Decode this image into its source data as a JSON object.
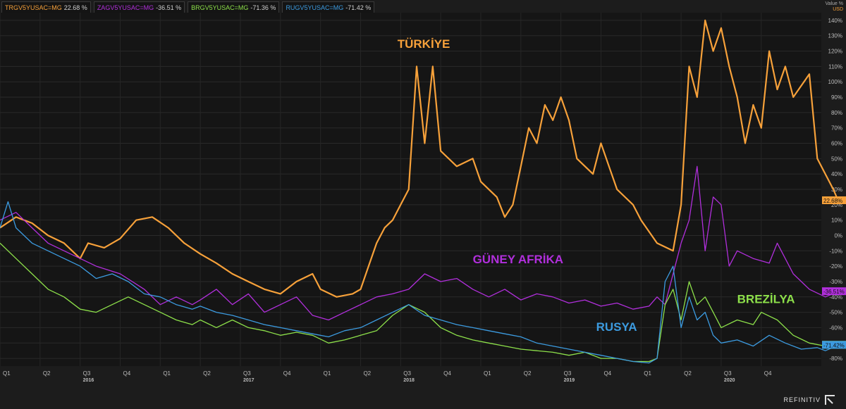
{
  "legend": [
    {
      "code": "TRGV5YUSAC=MG",
      "value": "22.68 %",
      "color": "#f7a13a"
    },
    {
      "code": "ZAGV5YUSAC=MG",
      "value": "-36.51 %",
      "color": "#b12fdc"
    },
    {
      "code": "BRGV5YUSAC=MG",
      "value": "-71.36 %",
      "color": "#8de04a"
    },
    {
      "code": "RUGV5YUSAC=MG",
      "value": "-71.42 %",
      "color": "#3c9be0"
    }
  ],
  "axis_unit": {
    "label": "Value %",
    "currency": "USD"
  },
  "brand": "REFINITIV",
  "chart_data": {
    "type": "line",
    "ylim": [
      -85,
      145
    ],
    "x_range": [
      2015.75,
      2020.875
    ],
    "y_ticks": [
      "140%",
      "130%",
      "120%",
      "110%",
      "100%",
      "90%",
      "80%",
      "70%",
      "60%",
      "50%",
      "40%",
      "30%",
      "20%",
      "10%",
      "0%",
      "-10%",
      "-20%",
      "-30%",
      "-40%",
      "-50%",
      "-60%",
      "-70%",
      "-80%"
    ],
    "y_tick_values": [
      140,
      130,
      120,
      110,
      100,
      90,
      80,
      70,
      60,
      50,
      40,
      30,
      20,
      10,
      0,
      -10,
      -20,
      -30,
      -40,
      -50,
      -60,
      -70,
      -80
    ],
    "quarter_ticks": [
      {
        "x": 2015.75,
        "label": "Q1"
      },
      {
        "x": 2016.0,
        "label": "Q2"
      },
      {
        "x": 2016.25,
        "label": "Q3"
      },
      {
        "x": 2016.5,
        "label": "Q4"
      },
      {
        "x": 2016.75,
        "label": "Q1"
      },
      {
        "x": 2017.0,
        "label": "Q2"
      },
      {
        "x": 2017.25,
        "label": "Q3"
      },
      {
        "x": 2017.5,
        "label": "Q4"
      },
      {
        "x": 2017.75,
        "label": "Q1"
      },
      {
        "x": 2018.0,
        "label": "Q2"
      },
      {
        "x": 2018.25,
        "label": "Q3"
      },
      {
        "x": 2018.5,
        "label": "Q4"
      },
      {
        "x": 2018.75,
        "label": "Q1"
      },
      {
        "x": 2019.0,
        "label": "Q2"
      },
      {
        "x": 2019.25,
        "label": "Q3"
      },
      {
        "x": 2019.5,
        "label": "Q4"
      },
      {
        "x": 2019.75,
        "label": "Q1"
      },
      {
        "x": 2020.0,
        "label": "Q2"
      },
      {
        "x": 2020.25,
        "label": "Q3"
      },
      {
        "x": 2020.5,
        "label": "Q4"
      }
    ],
    "year_ticks": [
      {
        "x": 2016.25,
        "label": "2016"
      },
      {
        "x": 2017.25,
        "label": "2017"
      },
      {
        "x": 2018.25,
        "label": "2018"
      },
      {
        "x": 2019.25,
        "label": "2019"
      },
      {
        "x": 2020.25,
        "label": "2020"
      }
    ],
    "series": [
      {
        "name": "TÜRKİYE",
        "color": "#f7a13a",
        "last_label": "22.68%",
        "points": [
          [
            2015.75,
            5
          ],
          [
            2015.85,
            12
          ],
          [
            2015.95,
            8
          ],
          [
            2016.05,
            0
          ],
          [
            2016.15,
            -5
          ],
          [
            2016.25,
            -15
          ],
          [
            2016.3,
            -5
          ],
          [
            2016.4,
            -8
          ],
          [
            2016.5,
            -2
          ],
          [
            2016.6,
            10
          ],
          [
            2016.7,
            12
          ],
          [
            2016.8,
            5
          ],
          [
            2016.9,
            -5
          ],
          [
            2017.0,
            -12
          ],
          [
            2017.1,
            -18
          ],
          [
            2017.2,
            -25
          ],
          [
            2017.3,
            -30
          ],
          [
            2017.4,
            -35
          ],
          [
            2017.5,
            -38
          ],
          [
            2017.6,
            -30
          ],
          [
            2017.7,
            -25
          ],
          [
            2017.75,
            -35
          ],
          [
            2017.85,
            -40
          ],
          [
            2017.95,
            -38
          ],
          [
            2018.0,
            -35
          ],
          [
            2018.05,
            -20
          ],
          [
            2018.1,
            -5
          ],
          [
            2018.15,
            5
          ],
          [
            2018.2,
            10
          ],
          [
            2018.25,
            20
          ],
          [
            2018.3,
            30
          ],
          [
            2018.35,
            110
          ],
          [
            2018.4,
            60
          ],
          [
            2018.45,
            110
          ],
          [
            2018.5,
            55
          ],
          [
            2018.6,
            45
          ],
          [
            2018.7,
            50
          ],
          [
            2018.75,
            35
          ],
          [
            2018.85,
            25
          ],
          [
            2018.9,
            12
          ],
          [
            2018.95,
            20
          ],
          [
            2019.0,
            45
          ],
          [
            2019.05,
            70
          ],
          [
            2019.1,
            60
          ],
          [
            2019.15,
            85
          ],
          [
            2019.2,
            75
          ],
          [
            2019.25,
            90
          ],
          [
            2019.3,
            75
          ],
          [
            2019.35,
            50
          ],
          [
            2019.45,
            40
          ],
          [
            2019.5,
            60
          ],
          [
            2019.55,
            45
          ],
          [
            2019.6,
            30
          ],
          [
            2019.7,
            20
          ],
          [
            2019.75,
            10
          ],
          [
            2019.85,
            -5
          ],
          [
            2019.95,
            -10
          ],
          [
            2020.0,
            20
          ],
          [
            2020.05,
            110
          ],
          [
            2020.1,
            90
          ],
          [
            2020.15,
            140
          ],
          [
            2020.2,
            120
          ],
          [
            2020.25,
            135
          ],
          [
            2020.3,
            110
          ],
          [
            2020.35,
            90
          ],
          [
            2020.4,
            60
          ],
          [
            2020.45,
            85
          ],
          [
            2020.5,
            70
          ],
          [
            2020.55,
            120
          ],
          [
            2020.6,
            95
          ],
          [
            2020.65,
            110
          ],
          [
            2020.7,
            90
          ],
          [
            2020.8,
            105
          ],
          [
            2020.85,
            50
          ],
          [
            2020.9,
            40
          ],
          [
            2020.95,
            30
          ],
          [
            2020.98,
            22.68
          ]
        ]
      },
      {
        "name": "GÜNEY AFRİKA",
        "color": "#b12fdc",
        "last_label": "-36.51%",
        "points": [
          [
            2015.75,
            10
          ],
          [
            2015.85,
            15
          ],
          [
            2015.95,
            5
          ],
          [
            2016.05,
            -5
          ],
          [
            2016.15,
            -10
          ],
          [
            2016.25,
            -15
          ],
          [
            2016.35,
            -20
          ],
          [
            2016.5,
            -25
          ],
          [
            2016.65,
            -35
          ],
          [
            2016.75,
            -45
          ],
          [
            2016.85,
            -40
          ],
          [
            2016.95,
            -45
          ],
          [
            2017.0,
            -42
          ],
          [
            2017.1,
            -35
          ],
          [
            2017.2,
            -45
          ],
          [
            2017.3,
            -38
          ],
          [
            2017.4,
            -50
          ],
          [
            2017.5,
            -45
          ],
          [
            2017.6,
            -40
          ],
          [
            2017.7,
            -52
          ],
          [
            2017.8,
            -55
          ],
          [
            2017.9,
            -50
          ],
          [
            2018.0,
            -45
          ],
          [
            2018.1,
            -40
          ],
          [
            2018.2,
            -38
          ],
          [
            2018.3,
            -35
          ],
          [
            2018.4,
            -25
          ],
          [
            2018.5,
            -30
          ],
          [
            2018.6,
            -28
          ],
          [
            2018.7,
            -35
          ],
          [
            2018.8,
            -40
          ],
          [
            2018.9,
            -35
          ],
          [
            2019.0,
            -42
          ],
          [
            2019.1,
            -38
          ],
          [
            2019.2,
            -40
          ],
          [
            2019.3,
            -44
          ],
          [
            2019.4,
            -42
          ],
          [
            2019.5,
            -46
          ],
          [
            2019.6,
            -44
          ],
          [
            2019.7,
            -48
          ],
          [
            2019.8,
            -46
          ],
          [
            2019.85,
            -40
          ],
          [
            2019.9,
            -45
          ],
          [
            2020.0,
            -5
          ],
          [
            2020.05,
            10
          ],
          [
            2020.1,
            45
          ],
          [
            2020.15,
            -10
          ],
          [
            2020.2,
            25
          ],
          [
            2020.25,
            20
          ],
          [
            2020.3,
            -20
          ],
          [
            2020.35,
            -10
          ],
          [
            2020.45,
            -15
          ],
          [
            2020.55,
            -18
          ],
          [
            2020.6,
            -5
          ],
          [
            2020.7,
            -25
          ],
          [
            2020.8,
            -35
          ],
          [
            2020.9,
            -40
          ],
          [
            2020.98,
            -36.51
          ]
        ]
      },
      {
        "name": "BREZİLYA",
        "color": "#8de04a",
        "last_label": "-71.36%",
        "points": [
          [
            2015.75,
            -5
          ],
          [
            2015.85,
            -15
          ],
          [
            2015.95,
            -25
          ],
          [
            2016.05,
            -35
          ],
          [
            2016.15,
            -40
          ],
          [
            2016.25,
            -48
          ],
          [
            2016.35,
            -50
          ],
          [
            2016.45,
            -45
          ],
          [
            2016.55,
            -40
          ],
          [
            2016.65,
            -45
          ],
          [
            2016.75,
            -50
          ],
          [
            2016.85,
            -55
          ],
          [
            2016.95,
            -58
          ],
          [
            2017.0,
            -55
          ],
          [
            2017.1,
            -60
          ],
          [
            2017.2,
            -55
          ],
          [
            2017.3,
            -60
          ],
          [
            2017.4,
            -62
          ],
          [
            2017.5,
            -65
          ],
          [
            2017.6,
            -63
          ],
          [
            2017.7,
            -65
          ],
          [
            2017.8,
            -70
          ],
          [
            2017.9,
            -68
          ],
          [
            2018.0,
            -65
          ],
          [
            2018.1,
            -62
          ],
          [
            2018.2,
            -52
          ],
          [
            2018.3,
            -45
          ],
          [
            2018.4,
            -50
          ],
          [
            2018.5,
            -60
          ],
          [
            2018.6,
            -65
          ],
          [
            2018.7,
            -68
          ],
          [
            2018.8,
            -70
          ],
          [
            2018.9,
            -72
          ],
          [
            2019.0,
            -74
          ],
          [
            2019.1,
            -75
          ],
          [
            2019.2,
            -76
          ],
          [
            2019.3,
            -78
          ],
          [
            2019.4,
            -76
          ],
          [
            2019.5,
            -80
          ],
          [
            2019.6,
            -80
          ],
          [
            2019.7,
            -82
          ],
          [
            2019.8,
            -82
          ],
          [
            2019.85,
            -80
          ],
          [
            2019.9,
            -45
          ],
          [
            2019.95,
            -35
          ],
          [
            2020.0,
            -55
          ],
          [
            2020.05,
            -30
          ],
          [
            2020.1,
            -45
          ],
          [
            2020.15,
            -40
          ],
          [
            2020.2,
            -50
          ],
          [
            2020.25,
            -60
          ],
          [
            2020.35,
            -55
          ],
          [
            2020.45,
            -58
          ],
          [
            2020.5,
            -50
          ],
          [
            2020.6,
            -55
          ],
          [
            2020.7,
            -65
          ],
          [
            2020.8,
            -70
          ],
          [
            2020.9,
            -72
          ],
          [
            2020.98,
            -71.36
          ]
        ]
      },
      {
        "name": "RUSYA",
        "color": "#3c9be0",
        "last_label": "-71.42%",
        "points": [
          [
            2015.75,
            5
          ],
          [
            2015.8,
            22
          ],
          [
            2015.85,
            5
          ],
          [
            2015.95,
            -5
          ],
          [
            2016.05,
            -10
          ],
          [
            2016.15,
            -15
          ],
          [
            2016.25,
            -20
          ],
          [
            2016.35,
            -28
          ],
          [
            2016.45,
            -25
          ],
          [
            2016.55,
            -30
          ],
          [
            2016.65,
            -38
          ],
          [
            2016.75,
            -40
          ],
          [
            2016.85,
            -45
          ],
          [
            2016.95,
            -48
          ],
          [
            2017.0,
            -46
          ],
          [
            2017.1,
            -50
          ],
          [
            2017.2,
            -52
          ],
          [
            2017.3,
            -55
          ],
          [
            2017.4,
            -58
          ],
          [
            2017.5,
            -60
          ],
          [
            2017.6,
            -62
          ],
          [
            2017.7,
            -64
          ],
          [
            2017.8,
            -66
          ],
          [
            2017.9,
            -62
          ],
          [
            2018.0,
            -60
          ],
          [
            2018.1,
            -55
          ],
          [
            2018.2,
            -50
          ],
          [
            2018.3,
            -45
          ],
          [
            2018.4,
            -52
          ],
          [
            2018.5,
            -55
          ],
          [
            2018.6,
            -58
          ],
          [
            2018.7,
            -60
          ],
          [
            2018.8,
            -62
          ],
          [
            2018.9,
            -64
          ],
          [
            2019.0,
            -66
          ],
          [
            2019.1,
            -70
          ],
          [
            2019.2,
            -72
          ],
          [
            2019.3,
            -74
          ],
          [
            2019.4,
            -76
          ],
          [
            2019.5,
            -78
          ],
          [
            2019.6,
            -80
          ],
          [
            2019.7,
            -82
          ],
          [
            2019.8,
            -83
          ],
          [
            2019.85,
            -80
          ],
          [
            2019.9,
            -30
          ],
          [
            2019.95,
            -20
          ],
          [
            2020.0,
            -60
          ],
          [
            2020.05,
            -40
          ],
          [
            2020.1,
            -55
          ],
          [
            2020.15,
            -50
          ],
          [
            2020.2,
            -65
          ],
          [
            2020.25,
            -70
          ],
          [
            2020.35,
            -68
          ],
          [
            2020.45,
            -72
          ],
          [
            2020.55,
            -65
          ],
          [
            2020.65,
            -70
          ],
          [
            2020.75,
            -74
          ],
          [
            2020.85,
            -73
          ],
          [
            2020.9,
            -75
          ],
          [
            2020.98,
            -71.42
          ]
        ]
      }
    ],
    "annotations": [
      {
        "text": "TÜRKİYE",
        "x": 2018.23,
        "y": 122,
        "color": "#f7a13a"
      },
      {
        "text": "GÜNEY AFRİKA",
        "x": 2018.7,
        "y": -18,
        "color": "#b12fdc"
      },
      {
        "text": "BREZİLYA",
        "x": 2020.35,
        "y": -44,
        "color": "#8de04a"
      },
      {
        "text": "RUSYA",
        "x": 2019.47,
        "y": -62,
        "color": "#3c9be0"
      }
    ]
  }
}
